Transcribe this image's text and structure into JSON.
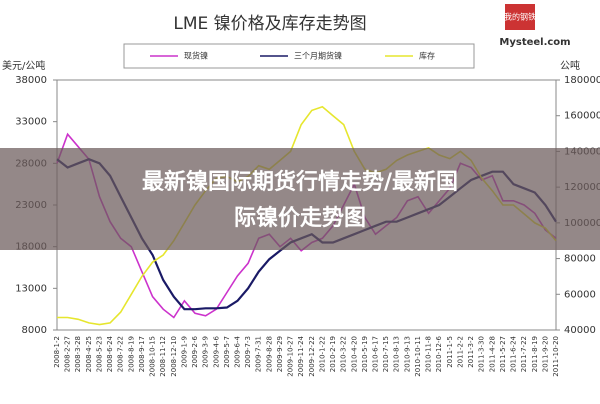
{
  "chart_data": {
    "type": "line",
    "title": "LME 镍价格及库存走势图",
    "y_label": "美元/公吨",
    "y2_label": "公吨",
    "logo": {
      "mark": "我的钢铁",
      "site": "Mysteel.com"
    },
    "banner_lines": [
      "最新镍国际期货行情走势/最新国",
      "际镍价走势图"
    ],
    "categories": [
      "2008-1-2",
      "2008-2-27",
      "2008-3-28",
      "2008-4-25",
      "2008-5-23",
      "2008-6-24",
      "2008-7-22",
      "2008-8-19",
      "2008-9-17",
      "2008-10-15",
      "2008-11-12",
      "2008-12-10",
      "2009-1-9",
      "2009-2-6",
      "2009-3-9",
      "2009-4-6",
      "2009-5-7",
      "2009-6-4",
      "2009-7-3",
      "2009-7-31",
      "2009-8-28",
      "2009-9-29",
      "2009-10-27",
      "2009-11-24",
      "2009-12-22",
      "2010-1-22",
      "2010-2-19",
      "2010-3-22",
      "2010-4-20",
      "2010-5-19",
      "2010-6-17",
      "2010-7-15",
      "2010-8-13",
      "2010-9-13",
      "2010-10-11",
      "2010-11-8",
      "2010-12-6",
      "2011-1-5",
      "2011-2-2",
      "2011-3-2",
      "2011-3-30",
      "2011-4-28",
      "2011-5-27",
      "2011-6-24",
      "2011-7-22",
      "2011-8-19",
      "2011-9-20",
      "2011-10-20"
    ],
    "series": [
      {
        "name": "现货镍",
        "color": "#cc33cc",
        "values": [
          28000,
          31500,
          30000,
          28500,
          24000,
          21000,
          19000,
          18000,
          15000,
          12000,
          10500,
          9500,
          11500,
          10000,
          9700,
          10500,
          12500,
          14500,
          16000,
          19000,
          19500,
          18000,
          19000,
          17500,
          18500,
          19000,
          20500,
          23000,
          25500,
          21500,
          19500,
          20500,
          21500,
          23500,
          24000,
          22000,
          23500,
          25000,
          28000,
          27500,
          26000,
          26500,
          23500,
          23500,
          23000,
          22000,
          20000,
          19000
        ]
      },
      {
        "name": "三个月期货镍",
        "color": "#1a1a66",
        "values": [
          28500,
          27500,
          28000,
          28500,
          28000,
          26500,
          24000,
          21500,
          19000,
          17000,
          14000,
          12000,
          10500,
          10500,
          10600,
          10600,
          10700,
          11500,
          13000,
          15000,
          16500,
          17500,
          18500,
          19000,
          19500,
          18500,
          18500,
          19000,
          19500,
          20000,
          20500,
          21000,
          21000,
          21500,
          22000,
          22500,
          23000,
          24000,
          25000,
          26000,
          26500,
          27000,
          27000,
          25500,
          25000,
          24500,
          23000,
          21000
        ]
      },
      {
        "name": "库存",
        "color": "#e6e62e",
        "axis": "y2",
        "values": [
          47000,
          47000,
          46000,
          44000,
          43000,
          44000,
          50000,
          60000,
          70000,
          78000,
          82000,
          90000,
          100000,
          110000,
          118000,
          125000,
          126000,
          123000,
          126000,
          132000,
          130000,
          135000,
          140000,
          155000,
          163000,
          165000,
          160000,
          155000,
          140000,
          130000,
          128000,
          130000,
          135000,
          138000,
          140000,
          142000,
          138000,
          136000,
          140000,
          135000,
          125000,
          118000,
          110000,
          110000,
          105000,
          100000,
          97000,
          90000
        ]
      }
    ],
    "ylim": [
      8000,
      38000
    ],
    "yticks": [
      8000,
      13000,
      18000,
      23000,
      28000,
      33000,
      38000
    ],
    "y2lim": [
      40000,
      180000
    ],
    "y2ticks": [
      40000,
      60000,
      80000,
      100000,
      120000,
      140000,
      160000,
      180000
    ]
  }
}
